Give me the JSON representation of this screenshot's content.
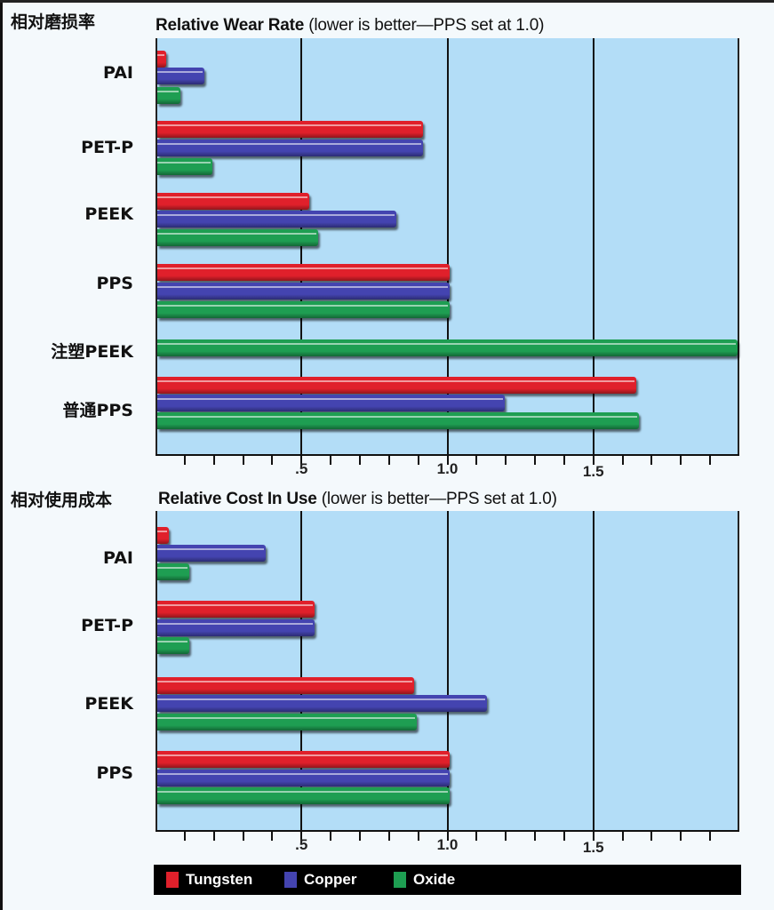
{
  "colors": {
    "tungsten": "#e0202b",
    "copper": "#4444b0",
    "oxide": "#1e9e52",
    "plot_bg": "#b3ddf7"
  },
  "chart_data": [
    {
      "type": "bar",
      "orientation": "horizontal",
      "title": "Relative Wear Rate (lower is better—PPS set at 1.0)",
      "title_bold": "Relative Wear Rate",
      "title_rest": " (lower is better—PPS set at 1.0)",
      "title_cn": "相对磨损率",
      "xlabel": "",
      "ylabel": "",
      "xlim": [
        0,
        2.0
      ],
      "xticks_major": [
        0.5,
        1.0,
        1.5
      ],
      "xtick_labels": [
        ".5",
        "1.0",
        "1.5"
      ],
      "minor_tick_step": 0.1,
      "grid": "vertical lines at .5, 1.0, 1.5",
      "categories": [
        "PAI",
        "PET-P",
        "PEEK",
        "PPS",
        "注塑PEEK",
        "普通PPS"
      ],
      "series": [
        {
          "name": "Tungsten",
          "values": [
            0.03,
            0.91,
            0.52,
            1.0,
            null,
            1.64
          ]
        },
        {
          "name": "Copper",
          "values": [
            0.16,
            0.91,
            0.82,
            1.0,
            null,
            1.19
          ]
        },
        {
          "name": "Oxide",
          "values": [
            0.08,
            0.19,
            0.55,
            1.0,
            2.0,
            1.65
          ]
        }
      ],
      "legend_position": "bottom"
    },
    {
      "type": "bar",
      "orientation": "horizontal",
      "title": "Relative Cost In Use (lower is better—PPS set at 1.0)",
      "title_bold": "Relative Cost In Use",
      "title_rest": " (lower is better—PPS set at 1.0)",
      "title_cn": "相对使用成本",
      "xlabel": "",
      "ylabel": "",
      "xlim": [
        0,
        2.0
      ],
      "xticks_major": [
        0.5,
        1.0,
        1.5
      ],
      "xtick_labels": [
        ".5",
        "1.0",
        "1.5"
      ],
      "minor_tick_step": 0.1,
      "grid": "vertical lines at .5, 1.0, 1.5",
      "categories": [
        "PAI",
        "PET-P",
        "PEEK",
        "PPS"
      ],
      "series": [
        {
          "name": "Tungsten",
          "values": [
            0.04,
            0.54,
            0.88,
            1.0
          ]
        },
        {
          "name": "Copper",
          "values": [
            0.37,
            0.54,
            1.13,
            1.0
          ]
        },
        {
          "name": "Oxide",
          "values": [
            0.11,
            0.11,
            0.89,
            1.0
          ]
        }
      ],
      "legend_position": "bottom"
    }
  ],
  "legend": [
    {
      "label": "Tungsten",
      "color": "#e0202b"
    },
    {
      "label": "Copper",
      "color": "#4444b0"
    },
    {
      "label": "Oxide",
      "color": "#1e9e52"
    }
  ]
}
